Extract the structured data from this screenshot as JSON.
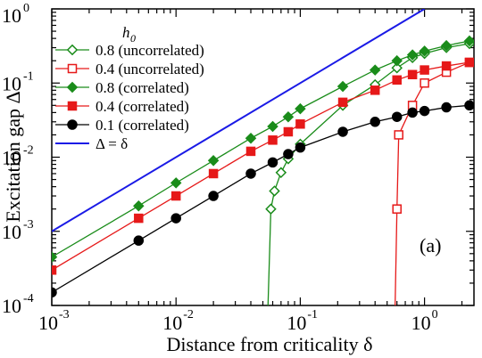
{
  "chart_data": {
    "type": "line",
    "xlabel": "Distance from criticality δ",
    "ylabel": "Excitation gap Δ",
    "xscale": "log",
    "yscale": "log",
    "xlim": [
      0.001,
      2.5
    ],
    "ylim": [
      0.0001,
      1
    ],
    "x_ticks": [
      {
        "value": 0.001,
        "base": "10",
        "exp": "-3"
      },
      {
        "value": 0.01,
        "base": "10",
        "exp": "-2"
      },
      {
        "value": 0.1,
        "base": "10",
        "exp": "-1"
      },
      {
        "value": 1,
        "base": "10",
        "exp": "0"
      }
    ],
    "y_ticks": [
      {
        "value": 0.0001,
        "base": "10",
        "exp": "-4"
      },
      {
        "value": 0.001,
        "base": "10",
        "exp": "-3"
      },
      {
        "value": 0.01,
        "base": "10",
        "exp": "-2"
      },
      {
        "value": 0.1,
        "base": "10",
        "exp": "-1"
      },
      {
        "value": 1,
        "base": "10",
        "exp": "0"
      }
    ],
    "panel_label": "(a)",
    "legend_title": "h",
    "legend_title_sub": "0",
    "legend_position": "top-left",
    "series": [
      {
        "name": "0.8 (uncorrelated)",
        "color": "#1a8c1a",
        "marker": "diamond",
        "filled": false,
        "x": [
          0.055,
          0.058,
          0.062,
          0.07,
          0.08,
          0.1,
          0.22,
          0.4,
          0.6,
          0.8,
          1.0,
          1.5,
          2.3
        ],
        "y": [
          0.0001,
          0.002,
          0.0035,
          0.0062,
          0.0095,
          0.015,
          0.05,
          0.095,
          0.16,
          0.22,
          0.25,
          0.3,
          0.34
        ]
      },
      {
        "name": "0.4 (uncorrelated)",
        "color": "#e61919",
        "marker": "square",
        "filled": false,
        "x": [
          0.58,
          0.6,
          0.62,
          0.8,
          1.0,
          1.5,
          2.3
        ],
        "y": [
          0.0001,
          0.002,
          0.02,
          0.05,
          0.1,
          0.14,
          0.19
        ]
      },
      {
        "name": "0.8 (correlated)",
        "color": "#1a8c1a",
        "marker": "diamond",
        "filled": true,
        "x": [
          0.001,
          0.005,
          0.01,
          0.02,
          0.04,
          0.06,
          0.08,
          0.1,
          0.22,
          0.4,
          0.6,
          0.8,
          1.0,
          1.5,
          2.3
        ],
        "y": [
          0.00045,
          0.0022,
          0.0045,
          0.009,
          0.018,
          0.026,
          0.035,
          0.045,
          0.09,
          0.15,
          0.2,
          0.24,
          0.27,
          0.32,
          0.37
        ]
      },
      {
        "name": "0.4 (correlated)",
        "color": "#e61919",
        "marker": "square",
        "filled": true,
        "x": [
          0.001,
          0.005,
          0.01,
          0.02,
          0.04,
          0.06,
          0.08,
          0.1,
          0.22,
          0.4,
          0.6,
          0.8,
          1.0,
          1.5,
          2.3
        ],
        "y": [
          0.0003,
          0.0015,
          0.003,
          0.006,
          0.012,
          0.017,
          0.022,
          0.028,
          0.055,
          0.08,
          0.11,
          0.13,
          0.15,
          0.17,
          0.19
        ]
      },
      {
        "name": "0.1 (correlated)",
        "color": "#000000",
        "marker": "circle",
        "filled": true,
        "x": [
          0.001,
          0.005,
          0.01,
          0.02,
          0.04,
          0.06,
          0.08,
          0.1,
          0.22,
          0.4,
          0.6,
          0.8,
          1.0,
          1.5,
          2.3
        ],
        "y": [
          0.00015,
          0.00075,
          0.0015,
          0.003,
          0.006,
          0.0085,
          0.011,
          0.0135,
          0.022,
          0.03,
          0.035,
          0.04,
          0.042,
          0.047,
          0.05
        ]
      },
      {
        "name": "Δ = δ",
        "color": "#1a1ae6",
        "marker": "none",
        "filled": false,
        "x": [
          0.001,
          1
        ],
        "y": [
          0.001,
          1
        ]
      }
    ]
  }
}
